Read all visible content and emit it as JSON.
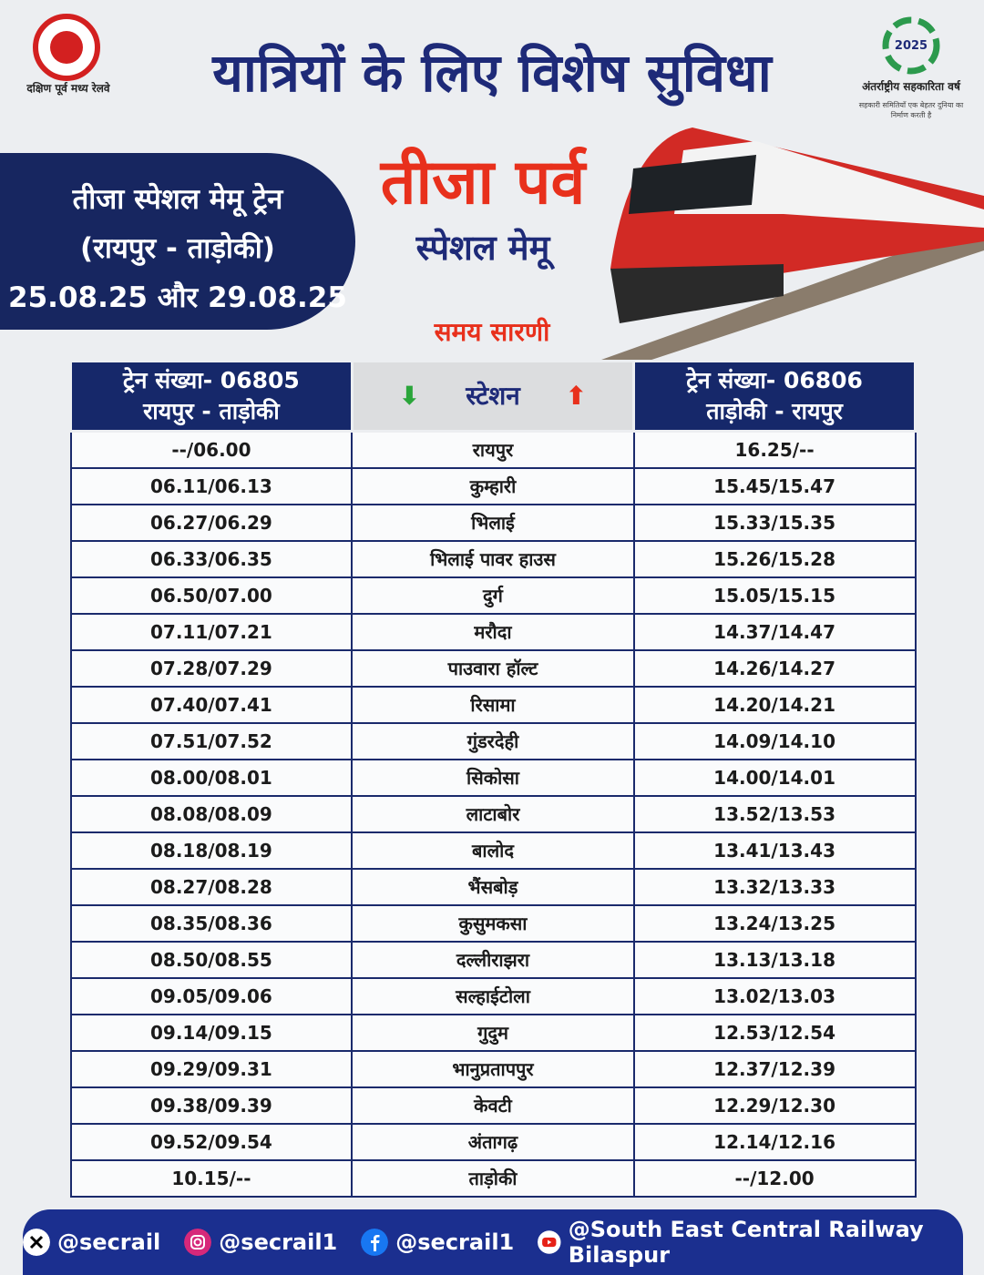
{
  "header": {
    "org_name": "दक्षिण पूर्व मध्य रेलवे",
    "title": "यात्रियों के लिए विशेष सुविधा",
    "badge_year": "2025",
    "badge_title": "अंतर्राष्ट्रीय सहकारिता वर्ष",
    "badge_tagline": "सहकारी समितियाँ एक बेहतर दुनिया का निर्माण करती है"
  },
  "panel": {
    "lines": [
      "तीजा स्पेशल मेमू ट्रेन",
      "(रायपुर - ताड़ोकी)",
      "25.08.25 और 29.08.25"
    ]
  },
  "headline": {
    "festival": "तीजा पर्व",
    "subtitle": "स्पेशल मेमू",
    "schedule": "समय सारणी"
  },
  "table": {
    "headers": [
      [
        "ट्रेन संख्या- 06805",
        "रायपुर - ताड़ोकी"
      ],
      [
        "स्टेशन"
      ],
      [
        "ट्रेन संख्या- 06806",
        "ताड़ोकी - रायपुर"
      ]
    ],
    "rows": [
      [
        "--/06.00",
        "रायपुर",
        "16.25/--"
      ],
      [
        "06.11/06.13",
        "कुम्हारी",
        "15.45/15.47"
      ],
      [
        "06.27/06.29",
        "भिलाई",
        "15.33/15.35"
      ],
      [
        "06.33/06.35",
        "भिलाई पावर हाउस",
        "15.26/15.28"
      ],
      [
        "06.50/07.00",
        "दुर्ग",
        "15.05/15.15"
      ],
      [
        "07.11/07.21",
        "मरौदा",
        "14.37/14.47"
      ],
      [
        "07.28/07.29",
        "पाउवारा हॉल्ट",
        "14.26/14.27"
      ],
      [
        "07.40/07.41",
        "रिसामा",
        "14.20/14.21"
      ],
      [
        "07.51/07.52",
        "गुंडरदेही",
        "14.09/14.10"
      ],
      [
        "08.00/08.01",
        "सिकोसा",
        "14.00/14.01"
      ],
      [
        "08.08/08.09",
        "लाटाबोर",
        "13.52/13.53"
      ],
      [
        "08.18/08.19",
        "बालोद",
        "13.41/13.43"
      ],
      [
        "08.27/08.28",
        "भैंसबोड़",
        "13.32/13.33"
      ],
      [
        "08.35/08.36",
        "कुसुमकसा",
        "13.24/13.25"
      ],
      [
        "08.50/08.55",
        "दल्लीराझरा",
        "13.13/13.18"
      ],
      [
        "09.05/09.06",
        "सल्हाईटोला",
        "13.02/13.03"
      ],
      [
        "09.14/09.15",
        "गुदुम",
        "12.53/12.54"
      ],
      [
        "09.29/09.31",
        "भानुप्रतापपुर",
        "12.37/12.39"
      ],
      [
        "09.38/09.39",
        "केवटी",
        "12.29/12.30"
      ],
      [
        "09.52/09.54",
        "अंतागढ़",
        "12.14/12.16"
      ],
      [
        "10.15/--",
        "ताड़ोकी",
        "--/12.00"
      ]
    ]
  },
  "footer": {
    "handles": [
      "@secrail",
      "@secrail1",
      "@secrail1",
      "@South East Central Railway Bilaspur"
    ]
  }
}
